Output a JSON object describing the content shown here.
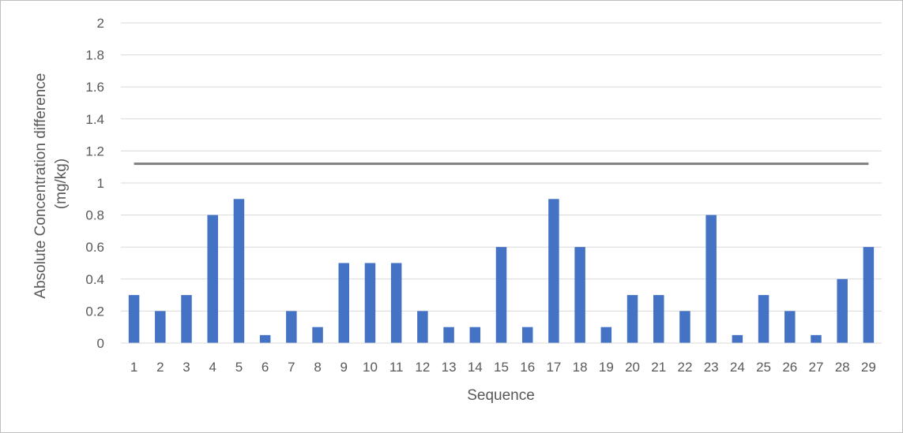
{
  "chart_data": {
    "type": "bar",
    "title": "",
    "xlabel": "Sequence",
    "ylabel_lines": [
      "Absolute Concentration difference",
      "(mg/kg)"
    ],
    "categories": [
      "1",
      "2",
      "3",
      "4",
      "5",
      "6",
      "7",
      "8",
      "9",
      "10",
      "11",
      "12",
      "13",
      "14",
      "15",
      "16",
      "17",
      "18",
      "19",
      "20",
      "21",
      "22",
      "23",
      "24",
      "25",
      "26",
      "27",
      "28",
      "29"
    ],
    "values": [
      0.3,
      0.2,
      0.3,
      0.8,
      0.9,
      0.05,
      0.2,
      0.1,
      0.5,
      0.5,
      0.5,
      0.2,
      0.1,
      0.1,
      0.6,
      0.1,
      0.9,
      0.6,
      0.1,
      0.3,
      0.3,
      0.2,
      0.8,
      0.05,
      0.3,
      0.2,
      0.05,
      0.4,
      0.6
    ],
    "reference_line": 1.12,
    "ylim": [
      0,
      2
    ],
    "yticks": [
      0,
      0.2,
      0.4,
      0.6,
      0.8,
      1,
      1.2,
      1.4,
      1.6,
      1.8,
      2
    ],
    "ytick_labels": [
      "0",
      "0.2",
      "0.4",
      "0.6",
      "0.8",
      "1",
      "1.2",
      "1.4",
      "1.6",
      "1.8",
      "2"
    ],
    "grid": true,
    "legend": "none",
    "colors": {
      "bar": "#4472c4",
      "reference_line": "#7f7f7f",
      "grid": "#d9d9d9",
      "text": "#595959",
      "axis": "#d9d9d9"
    }
  }
}
